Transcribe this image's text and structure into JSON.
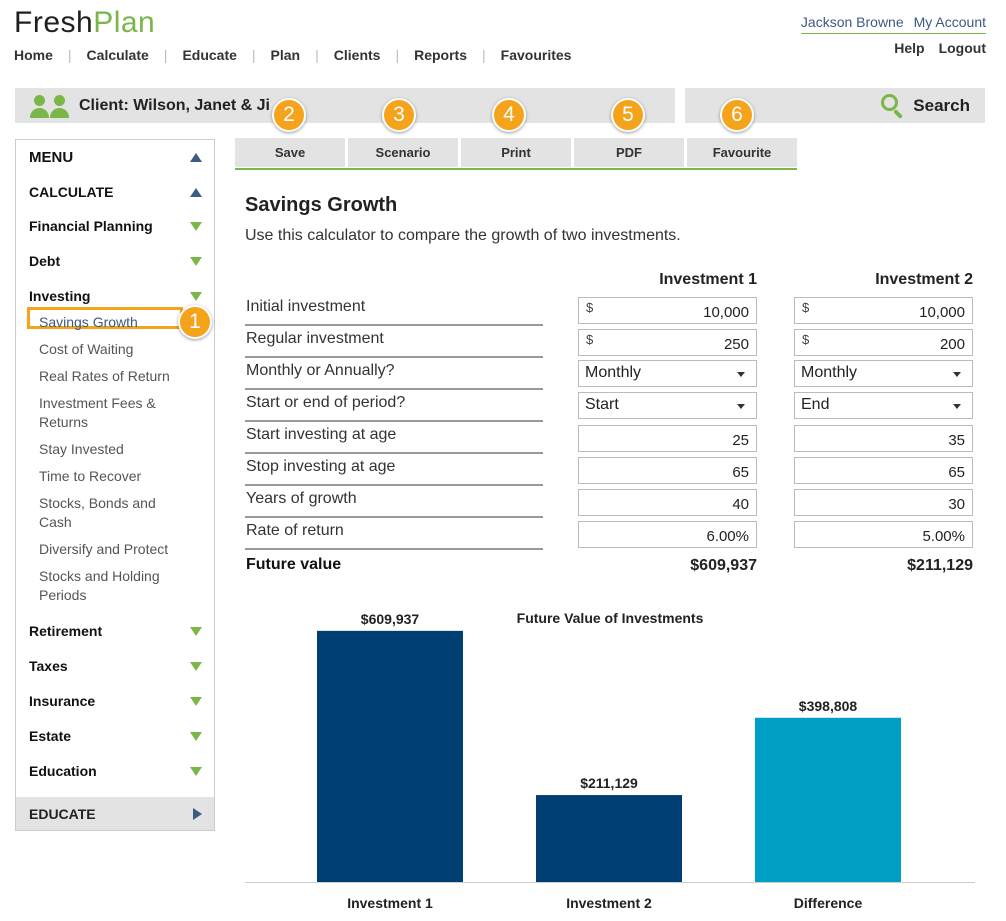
{
  "header": {
    "logo_part1": "Fresh",
    "logo_part2": "Plan",
    "nav": [
      "Home",
      "Calculate",
      "Educate",
      "Plan",
      "Clients",
      "Reports",
      "Favourites"
    ],
    "user_name": "Jackson Browne",
    "my_account": "My Account",
    "help": "Help",
    "logout": "Logout"
  },
  "client_bar": {
    "label": "Client: Wilson, Janet & Ji"
  },
  "search": {
    "label": "Search"
  },
  "toolbar": {
    "buttons": [
      "Save",
      "Scenario",
      "Print",
      "PDF",
      "Favourite"
    ],
    "callouts": [
      "2",
      "3",
      "4",
      "5",
      "6"
    ]
  },
  "sidebar": {
    "menu_title": "MENU",
    "calculate": "CALCULATE",
    "sections_top": [
      "Financial Planning",
      "Debt",
      "Investing"
    ],
    "investing_items": [
      "Savings Growth",
      "Cost of Waiting",
      "Real Rates of Return",
      "Investment Fees & Returns",
      "Stay Invested",
      "Time to Recover",
      "Stocks, Bonds and Cash",
      "Diversify and Protect",
      "Stocks and Holding Periods"
    ],
    "active_item": "Savings Growth",
    "active_callout": "1",
    "sections_bottom": [
      "Retirement",
      "Taxes",
      "Insurance",
      "Estate",
      "Education"
    ],
    "educate": "EDUCATE"
  },
  "main": {
    "title": "Savings Growth",
    "description": "Use this calculator to compare the growth of two investments.",
    "col1_header": "Investment 1",
    "col2_header": "Investment 2",
    "rows": [
      {
        "label": "Initial investment",
        "type": "currency",
        "inv1": "10,000",
        "inv2": "10,000"
      },
      {
        "label": "Regular investment",
        "type": "currency",
        "inv1": "250",
        "inv2": "200"
      },
      {
        "label": "Monthly or Annually?",
        "type": "select",
        "inv1": "Monthly",
        "inv2": "Monthly"
      },
      {
        "label": "Start or end of period?",
        "type": "select",
        "inv1": "Start",
        "inv2": "End"
      },
      {
        "label": "Start investing at age",
        "type": "number",
        "inv1": "25",
        "inv2": "35"
      },
      {
        "label": "Stop investing at age",
        "type": "number",
        "inv1": "65",
        "inv2": "65"
      },
      {
        "label": "Years of growth",
        "type": "number",
        "inv1": "40",
        "inv2": "30"
      },
      {
        "label": "Rate of return",
        "type": "number",
        "inv1": "6.00%",
        "inv2": "5.00%"
      }
    ],
    "currency_symbol": "$",
    "future_value_label": "Future value",
    "future_value_inv1": "$609,937",
    "future_value_inv2": "$211,129"
  },
  "chart_data": {
    "type": "bar",
    "title": "Future Value of Investments",
    "categories": [
      "Investment 1",
      "Investment 2",
      "Difference"
    ],
    "values": [
      609937,
      211129,
      398808
    ],
    "labels": [
      "$609,937",
      "$211,129",
      "$398,808"
    ],
    "colors": [
      "#003f73",
      "#003f73",
      "#00a0c6"
    ],
    "ylim": [
      0,
      680000
    ],
    "grid": false
  }
}
